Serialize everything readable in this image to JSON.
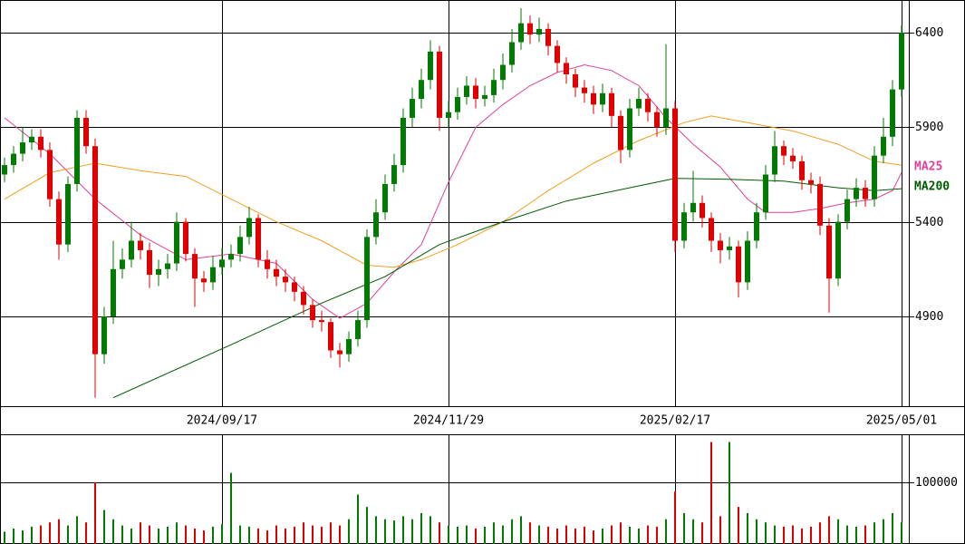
{
  "chart_data": [
    {
      "type": "candlestick",
      "categories": [
        null,
        null,
        null,
        null,
        null,
        null,
        null,
        null,
        null,
        null,
        null,
        null,
        null,
        null,
        null,
        null,
        null,
        null,
        null,
        null,
        null,
        null,
        null,
        null,
        "2024/09/17",
        null,
        null,
        null,
        null,
        null,
        null,
        null,
        null,
        null,
        null,
        null,
        null,
        null,
        null,
        null,
        null,
        null,
        null,
        null,
        null,
        null,
        null,
        null,
        null,
        "2024/11/29",
        null,
        null,
        null,
        null,
        null,
        null,
        null,
        null,
        null,
        null,
        null,
        null,
        null,
        null,
        null,
        null,
        null,
        null,
        null,
        null,
        null,
        null,
        null,
        null,
        "2025/02/17",
        null,
        null,
        null,
        null,
        null,
        null,
        null,
        null,
        null,
        null,
        null,
        null,
        null,
        null,
        null,
        null,
        null,
        null,
        null,
        null,
        null,
        null,
        null,
        null,
        "2025/05/01"
      ],
      "open": [
        5650,
        5700,
        5760,
        5820,
        5850,
        5780,
        5520,
        5280,
        5600,
        5950,
        5800,
        4700,
        4900,
        5150,
        5200,
        5300,
        5250,
        5120,
        5150,
        5180,
        5400,
        5230,
        5100,
        5080,
        5160,
        5200,
        5230,
        5320,
        5420,
        5200,
        5150,
        5110,
        5080,
        5030,
        4960,
        4880,
        4870,
        4720,
        4700,
        4780,
        4880,
        5320,
        5450,
        5600,
        5700,
        5950,
        6050,
        6150,
        6300,
        5950,
        5980,
        6060,
        6120,
        6050,
        6070,
        6150,
        6230,
        6350,
        6450,
        6390,
        6420,
        6330,
        6240,
        6180,
        6110,
        6080,
        6020,
        6080,
        5960,
        5780,
        6000,
        6050,
        5980,
        5900,
        6000,
        5300,
        5450,
        5500,
        5420,
        5300,
        5250,
        5270,
        5080,
        5300,
        5450,
        5650,
        5800,
        5750,
        5720,
        5620,
        5600,
        5380,
        5100,
        5400,
        5520,
        5580,
        5520,
        5750,
        5850,
        6100
      ],
      "high": [
        5740,
        5800,
        5900,
        5890,
        5890,
        5820,
        5560,
        5640,
        5990,
        5990,
        5840,
        4950,
        5300,
        5260,
        5400,
        5340,
        5290,
        5200,
        5230,
        5450,
        5420,
        5260,
        5140,
        5220,
        5260,
        5280,
        5380,
        5480,
        5440,
        5250,
        5200,
        5150,
        5110,
        5060,
        4990,
        4930,
        4890,
        4760,
        4820,
        4930,
        5360,
        5520,
        5650,
        5760,
        6000,
        6110,
        6210,
        6360,
        6330,
        6040,
        6110,
        6170,
        6160,
        6120,
        6210,
        6290,
        6420,
        6530,
        6490,
        6480,
        6450,
        6360,
        6270,
        6210,
        6150,
        6120,
        6130,
        6110,
        5990,
        6050,
        6110,
        6080,
        6010,
        6340,
        6040,
        5500,
        5670,
        5540,
        5450,
        5340,
        5320,
        5300,
        5350,
        5500,
        5700,
        5880,
        5830,
        5790,
        5750,
        5660,
        5640,
        5420,
        5440,
        5570,
        5630,
        5620,
        5800,
        5950,
        6150,
        6440
      ],
      "low": [
        5610,
        5660,
        5720,
        5780,
        5740,
        5480,
        5200,
        5240,
        5560,
        5760,
        4470,
        4650,
        4860,
        5100,
        5160,
        5200,
        5050,
        5060,
        5100,
        5140,
        5190,
        4950,
        5030,
        5040,
        5120,
        5160,
        5190,
        5280,
        5160,
        5100,
        5060,
        5030,
        4980,
        4910,
        4840,
        4820,
        4680,
        4630,
        4660,
        4740,
        4840,
        5280,
        5410,
        5560,
        5660,
        5900,
        6000,
        6100,
        5880,
        5900,
        5940,
        6020,
        6000,
        6010,
        6030,
        6100,
        6190,
        6310,
        6340,
        6350,
        6280,
        6190,
        6130,
        6060,
        6030,
        5970,
        5980,
        5900,
        5710,
        5740,
        5960,
        5930,
        5850,
        5860,
        5240,
        5260,
        5400,
        5370,
        5240,
        5180,
        5200,
        5000,
        5040,
        5260,
        5410,
        5610,
        5700,
        5680,
        5570,
        5550,
        5330,
        4920,
        5060,
        5360,
        5480,
        5480,
        5480,
        5710,
        5800,
        6060
      ],
      "close": [
        5700,
        5760,
        5820,
        5850,
        5780,
        5520,
        5280,
        5600,
        5950,
        5800,
        4700,
        4900,
        5150,
        5200,
        5300,
        5250,
        5120,
        5150,
        5180,
        5400,
        5230,
        5100,
        5080,
        5160,
        5200,
        5230,
        5320,
        5420,
        5200,
        5150,
        5110,
        5080,
        5030,
        4960,
        4880,
        4870,
        4720,
        4700,
        4780,
        4880,
        5320,
        5450,
        5600,
        5700,
        5950,
        6050,
        6150,
        6300,
        5950,
        5980,
        6060,
        6120,
        6050,
        6070,
        6150,
        6230,
        6350,
        6450,
        6390,
        6420,
        6330,
        6240,
        6180,
        6110,
        6080,
        6020,
        6080,
        5960,
        5780,
        6000,
        6050,
        5980,
        5900,
        6000,
        5300,
        5450,
        5500,
        5420,
        5300,
        5250,
        5270,
        5080,
        5300,
        5450,
        5650,
        5800,
        5750,
        5720,
        5620,
        5600,
        5380,
        5100,
        5400,
        5520,
        5580,
        5520,
        5750,
        5850,
        6100,
        6400
      ],
      "up_color": "#007a00",
      "down_color": "#e00000",
      "series": [
        {
          "name": "MA25",
          "color": "#e0409a",
          "x": [
            0,
            5,
            10,
            15,
            20,
            25,
            30,
            34,
            37,
            40,
            43,
            46,
            49,
            52,
            55,
            58,
            61,
            64,
            67,
            70,
            73,
            76,
            79,
            82,
            84,
            87,
            90,
            93,
            96,
            98,
            99
          ],
          "values": [
            5950,
            5760,
            5520,
            5330,
            5200,
            5230,
            5180,
            4990,
            4890,
            4970,
            5135,
            5280,
            5610,
            5900,
            6020,
            6120,
            6190,
            6230,
            6200,
            6120,
            5950,
            5810,
            5690,
            5520,
            5450,
            5450,
            5470,
            5500,
            5520,
            5565,
            5660
          ]
        },
        {
          "color": "#f0a020",
          "x": [
            0,
            5,
            10,
            15,
            20,
            25,
            30,
            35,
            40,
            43,
            46,
            50,
            55,
            60,
            65,
            70,
            75,
            78,
            82,
            87,
            92,
            96,
            99
          ],
          "values": [
            5520,
            5660,
            5710,
            5670,
            5640,
            5520,
            5400,
            5300,
            5170,
            5160,
            5200,
            5280,
            5400,
            5565,
            5710,
            5830,
            5925,
            5960,
            5925,
            5880,
            5810,
            5720,
            5700
          ]
        },
        {
          "name": "MA200",
          "color": "#005a00",
          "x": [
            12,
            25,
            35,
            42,
            48,
            55,
            62,
            70,
            74,
            80,
            86,
            92,
            96,
            99
          ],
          "values": [
            4470,
            4750,
            4970,
            5110,
            5280,
            5400,
            5510,
            5590,
            5630,
            5625,
            5615,
            5580,
            5565,
            5575
          ]
        }
      ],
      "ylim": [
        4425,
        6573
      ],
      "yticks": [
        4900,
        5400,
        5900,
        6400
      ],
      "grid": true
    },
    {
      "type": "bar",
      "values": [
        20000,
        25000,
        22000,
        28000,
        30000,
        35000,
        40000,
        30000,
        45000,
        35000,
        100000,
        55000,
        40000,
        30000,
        25000,
        35000,
        30000,
        25000,
        28000,
        35000,
        30000,
        25000,
        22000,
        28000,
        32000,
        115000,
        30000,
        28000,
        25000,
        22000,
        30000,
        25000,
        28000,
        35000,
        30000,
        28000,
        35000,
        30000,
        40000,
        80000,
        60000,
        45000,
        40000,
        38000,
        45000,
        40000,
        50000,
        45000,
        35000,
        30000,
        28000,
        30000,
        25000,
        28000,
        35000,
        30000,
        40000,
        45000,
        35000,
        30000,
        28000,
        25000,
        30000,
        25000,
        28000,
        22000,
        25000,
        30000,
        35000,
        28000,
        25000,
        30000,
        28000,
        40000,
        85000,
        50000,
        40000,
        35000,
        165000,
        45000,
        165000,
        60000,
        50000,
        40000,
        35000,
        30000,
        28000,
        30000,
        25000,
        28000,
        35000,
        45000,
        40000,
        30000,
        28000,
        30000,
        35000,
        40000,
        50000,
        35000
      ],
      "ylim": [
        0,
        176000
      ],
      "yticks": [
        100000
      ],
      "grid": true
    }
  ]
}
